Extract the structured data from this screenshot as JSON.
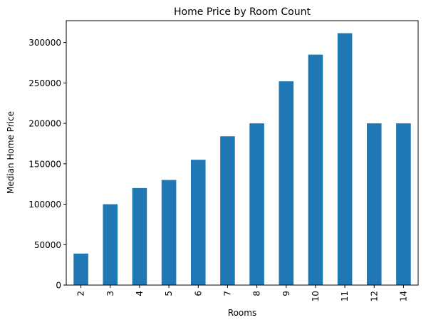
{
  "chart_data": {
    "type": "bar",
    "title": "Home Price by Room Count",
    "xlabel": "Rooms",
    "ylabel": "Median Home Price",
    "categories": [
      "2",
      "3",
      "4",
      "5",
      "6",
      "7",
      "8",
      "9",
      "10",
      "11",
      "12",
      "14"
    ],
    "values": [
      39000,
      100000,
      120000,
      130000,
      155000,
      184000,
      200000,
      252000,
      285000,
      311500,
      200000,
      200000
    ],
    "ylim": [
      0,
      327000
    ],
    "yticks": [
      0,
      50000,
      100000,
      150000,
      200000,
      250000,
      300000
    ],
    "ytick_labels": [
      "0",
      "50000",
      "100000",
      "150000",
      "200000",
      "250000",
      "300000"
    ],
    "bar_color": "#1f77b4",
    "grid": false,
    "legend": false
  }
}
